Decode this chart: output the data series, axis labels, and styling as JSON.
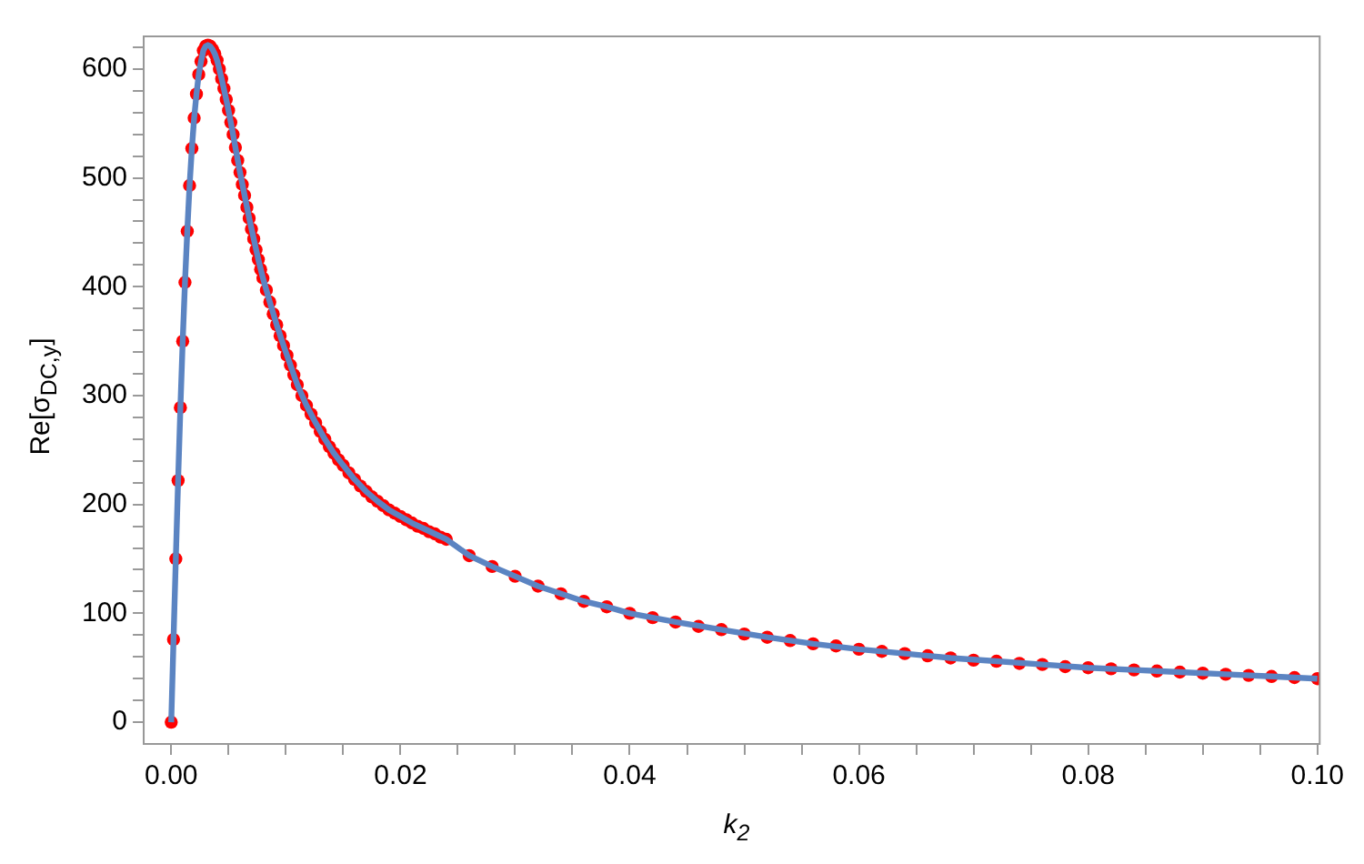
{
  "chart_data": {
    "type": "scatter",
    "xlabel": "k$_{2}$",
    "ylabel": "Re[σ$_{DC,y}$]",
    "xlim": [
      -0.0024,
      0.1002
    ],
    "ylim": [
      -20,
      630
    ],
    "xticks": [
      {
        "value": 0,
        "label": "0.00"
      },
      {
        "value": 0.005,
        "label": null
      },
      {
        "value": 0.01,
        "label": null
      },
      {
        "value": 0.015,
        "label": null
      },
      {
        "value": 0.02,
        "label": "0.02"
      },
      {
        "value": 0.025,
        "label": null
      },
      {
        "value": 0.03,
        "label": null
      },
      {
        "value": 0.035,
        "label": null
      },
      {
        "value": 0.04,
        "label": "0.04"
      },
      {
        "value": 0.045,
        "label": null
      },
      {
        "value": 0.05,
        "label": null
      },
      {
        "value": 0.055,
        "label": null
      },
      {
        "value": 0.06,
        "label": "0.06"
      },
      {
        "value": 0.065,
        "label": null
      },
      {
        "value": 0.07,
        "label": null
      },
      {
        "value": 0.075,
        "label": null
      },
      {
        "value": 0.08,
        "label": "0.08"
      },
      {
        "value": 0.085,
        "label": null
      },
      {
        "value": 0.09,
        "label": null
      },
      {
        "value": 0.095,
        "label": null
      },
      {
        "value": 0.1,
        "label": "0.10"
      }
    ],
    "yticks": [
      0,
      {
        "value": 20,
        "label": null
      },
      {
        "value": 40,
        "label": null
      },
      {
        "value": 60,
        "label": null
      },
      {
        "value": 80,
        "label": null
      },
      100,
      {
        "value": 120,
        "label": null
      },
      {
        "value": 140,
        "label": null
      },
      {
        "value": 160,
        "label": null
      },
      {
        "value": 180,
        "label": null
      },
      200,
      {
        "value": 220,
        "label": null
      },
      {
        "value": 240,
        "label": null
      },
      {
        "value": 260,
        "label": null
      },
      {
        "value": 280,
        "label": null
      },
      300,
      {
        "value": 320,
        "label": null
      },
      {
        "value": 340,
        "label": null
      },
      {
        "value": 360,
        "label": null
      },
      {
        "value": 380,
        "label": null
      },
      400,
      {
        "value": 420,
        "label": null
      },
      {
        "value": 440,
        "label": null
      },
      {
        "value": 460,
        "label": null
      },
      {
        "value": 480,
        "label": null
      },
      500,
      {
        "value": 520,
        "label": null
      },
      {
        "value": 540,
        "label": null
      },
      {
        "value": 560,
        "label": null
      },
      {
        "value": 580,
        "label": null
      },
      600,
      {
        "value": 620,
        "label": null
      }
    ],
    "grid": false,
    "legend": false,
    "marker": "circle",
    "series": [
      {
        "color": "#ff0000",
        "x": [
          0,
          0.0002,
          0.0004,
          0.0006,
          0.0008,
          0.001,
          0.0012,
          0.0014,
          0.0016,
          0.0018,
          0.002,
          0.0022,
          0.0024,
          0.0026,
          0.0028,
          0.003,
          0.0032,
          0.0034,
          0.0036,
          0.0038,
          0.004,
          0.0042,
          0.0044,
          0.0046,
          0.0048,
          0.005,
          0.0052,
          0.0054,
          0.0056,
          0.0058,
          0.006,
          0.0062,
          0.0064,
          0.0066,
          0.0068,
          0.007,
          0.0072,
          0.0074,
          0.0076,
          0.0078,
          0.008,
          0.0083,
          0.0086,
          0.0089,
          0.0092,
          0.0095,
          0.0098,
          0.0101,
          0.0104,
          0.0107,
          0.011,
          0.0114,
          0.0118,
          0.0122,
          0.0126,
          0.013,
          0.0134,
          0.0138,
          0.0142,
          0.0146,
          0.015,
          0.0155,
          0.016,
          0.0165,
          0.017,
          0.0175,
          0.018,
          0.0185,
          0.019,
          0.0195,
          0.02,
          0.0205,
          0.021,
          0.0215,
          0.022,
          0.0225,
          0.023,
          0.0235,
          0.024,
          0.026,
          0.028,
          0.03,
          0.032,
          0.034,
          0.036,
          0.038,
          0.04,
          0.042,
          0.044,
          0.046,
          0.048,
          0.05,
          0.052,
          0.054,
          0.056,
          0.058,
          0.06,
          0.062,
          0.064,
          0.066,
          0.068,
          0.07,
          0.072,
          0.074,
          0.076,
          0.078,
          0.08,
          0.082,
          0.084,
          0.086,
          0.088,
          0.09,
          0.092,
          0.094,
          0.096,
          0.098,
          0.1
        ],
        "values": [
          0,
          76,
          150,
          222,
          289,
          350,
          404,
          451,
          493,
          527,
          555,
          577,
          595,
          607,
          617,
          621,
          622,
          621,
          618,
          614,
          608,
          600,
          591,
          582,
          572,
          562,
          551,
          540,
          528,
          516,
          505,
          494,
          484,
          473,
          463,
          453,
          444,
          434,
          425,
          416,
          408,
          397,
          386,
          375,
          365,
          355,
          346,
          337,
          328,
          319,
          310,
          300,
          291,
          283,
          275,
          267,
          260,
          253,
          247,
          241,
          236,
          229,
          223,
          217,
          212,
          207,
          203,
          199,
          195,
          192,
          189,
          186,
          183,
          180,
          178,
          175,
          173,
          170,
          168,
          153,
          143,
          134,
          125,
          118,
          111,
          106,
          100,
          96,
          92,
          88,
          85,
          81,
          78,
          75,
          72,
          70,
          67,
          65,
          63,
          61,
          59,
          57,
          56,
          54,
          53,
          51,
          50,
          49,
          48,
          47,
          46,
          45,
          44,
          43,
          42,
          41,
          40
        ]
      },
      {
        "type": "line",
        "color": "#5b84c2",
        "line_style": "solid",
        "marker": "none",
        "x": [
          0,
          0.0002,
          0.0004,
          0.0006,
          0.0008,
          0.001,
          0.0012,
          0.0014,
          0.0016,
          0.0018,
          0.002,
          0.0022,
          0.0024,
          0.0026,
          0.0028,
          0.003,
          0.0032,
          0.0034,
          0.0036,
          0.0038,
          0.004,
          0.0044,
          0.0048,
          0.0052,
          0.0056,
          0.006,
          0.0064,
          0.0068,
          0.0072,
          0.0076,
          0.008,
          0.0086,
          0.0092,
          0.0098,
          0.0104,
          0.011,
          0.0118,
          0.0126,
          0.0134,
          0.0142,
          0.015,
          0.016,
          0.017,
          0.018,
          0.019,
          0.02,
          0.021,
          0.022,
          0.023,
          0.024,
          0.026,
          0.028,
          0.03,
          0.032,
          0.034,
          0.036,
          0.038,
          0.04,
          0.044,
          0.048,
          0.052,
          0.056,
          0.06,
          0.064,
          0.068,
          0.072,
          0.076,
          0.08,
          0.084,
          0.088,
          0.092,
          0.096,
          0.1
        ],
        "values": [
          0,
          76,
          150,
          222,
          289,
          350,
          404,
          451,
          493,
          527,
          555,
          577,
          595,
          607,
          617,
          621,
          622,
          621,
          618,
          614,
          608,
          591,
          572,
          551,
          528,
          505,
          484,
          463,
          444,
          425,
          408,
          386,
          365,
          346,
          328,
          310,
          291,
          275,
          260,
          247,
          236,
          223,
          212,
          203,
          195,
          189,
          183,
          178,
          173,
          168,
          153,
          143,
          134,
          125,
          118,
          111,
          106,
          100,
          92,
          85,
          78,
          72,
          67,
          63,
          59,
          56,
          53,
          50,
          48,
          46,
          44,
          42,
          40
        ]
      }
    ]
  }
}
